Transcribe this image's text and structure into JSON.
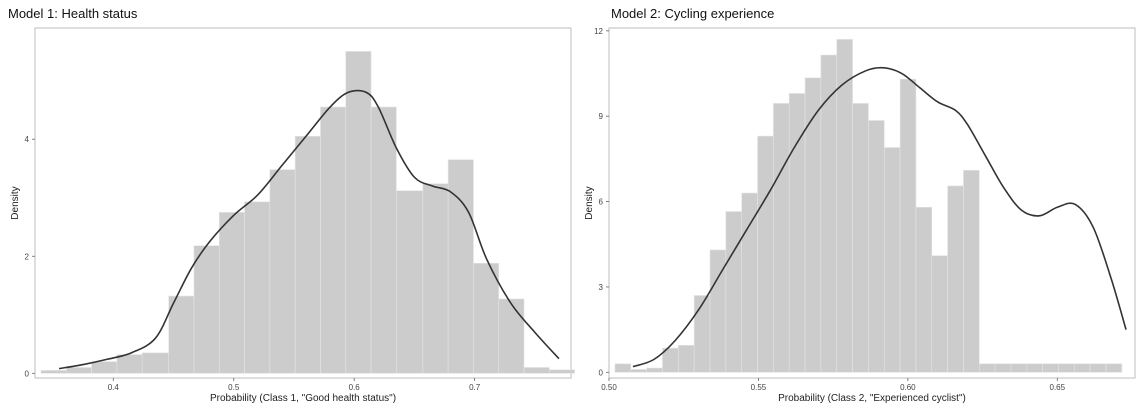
{
  "chart_data": [
    {
      "type": "bar",
      "title": "Model 1: Health status",
      "xlabel": "Probability (Class 1, \"Good health status\")",
      "ylabel": "Density",
      "xlim": [
        0.335,
        0.78
      ],
      "ylim": [
        -0.08,
        5.9
      ],
      "xticks": [
        "0.4",
        "0.5",
        "0.6",
        "0.7"
      ],
      "yticks": [
        "0",
        "2",
        "4"
      ],
      "grid": false,
      "histogram": {
        "bin_edges": [
          0.34,
          0.361,
          0.382,
          0.403,
          0.424,
          0.446,
          0.467,
          0.488,
          0.509,
          0.53,
          0.551,
          0.572,
          0.593,
          0.614,
          0.635,
          0.657,
          0.678,
          0.699,
          0.72,
          0.741,
          0.762,
          0.783
        ],
        "densities": [
          0.05,
          0.1,
          0.2,
          0.32,
          0.35,
          1.32,
          2.18,
          2.75,
          2.93,
          3.48,
          4.05,
          4.55,
          5.5,
          4.55,
          3.12,
          3.24,
          3.65,
          1.88,
          1.27,
          0.1,
          0.06
        ]
      },
      "density_curve": {
        "x": [
          0.355,
          0.375,
          0.395,
          0.415,
          0.435,
          0.45,
          0.465,
          0.48,
          0.5,
          0.52,
          0.54,
          0.56,
          0.58,
          0.595,
          0.61,
          0.62,
          0.635,
          0.65,
          0.665,
          0.68,
          0.695,
          0.71,
          0.73,
          0.75,
          0.77
        ],
        "y": [
          0.08,
          0.15,
          0.24,
          0.35,
          0.6,
          1.2,
          1.8,
          2.25,
          2.7,
          3.05,
          3.55,
          4.05,
          4.55,
          4.8,
          4.8,
          4.55,
          3.85,
          3.35,
          3.2,
          3.1,
          2.75,
          1.95,
          1.2,
          0.7,
          0.25
        ]
      }
    },
    {
      "type": "bar",
      "title": "Model 2: Cycling experience",
      "xlabel": "Probability (Class 2, \"Experienced cyclist\")",
      "ylabel": "Density",
      "xlim": [
        0.5,
        0.676
      ],
      "ylim": [
        -0.2,
        12.1
      ],
      "xticks": [
        "0.50",
        "0.55",
        "0.60",
        "0.65"
      ],
      "yticks": [
        "0",
        "3",
        "6",
        "9",
        "12"
      ],
      "grid": false,
      "histogram": {
        "bin_edges": [
          0.502,
          0.5073,
          0.5126,
          0.5179,
          0.5232,
          0.5285,
          0.5338,
          0.5391,
          0.5444,
          0.5497,
          0.555,
          0.5603,
          0.5656,
          0.5709,
          0.5762,
          0.5815,
          0.5868,
          0.5921,
          0.5974,
          0.6027,
          0.608,
          0.6133,
          0.6186,
          0.6239,
          0.6292,
          0.6345,
          0.6398,
          0.6451,
          0.6504,
          0.6557,
          0.661,
          0.6663,
          0.6716
        ],
        "densities": [
          0.3,
          0.1,
          0.15,
          0.85,
          0.95,
          2.7,
          4.3,
          5.65,
          6.3,
          8.3,
          9.45,
          9.8,
          10.35,
          11.15,
          11.7,
          9.45,
          8.85,
          7.9,
          10.3,
          5.8,
          4.1,
          6.55,
          7.1,
          0.3,
          0.3,
          0.3,
          0.3,
          0.3,
          0.3,
          0.3,
          0.3,
          0.3
        ]
      },
      "density_curve": {
        "x": [
          0.508,
          0.515,
          0.522,
          0.53,
          0.538,
          0.546,
          0.554,
          0.562,
          0.57,
          0.578,
          0.586,
          0.592,
          0.598,
          0.604,
          0.61,
          0.616,
          0.62,
          0.626,
          0.632,
          0.638,
          0.644,
          0.65,
          0.656,
          0.662,
          0.668,
          0.673
        ],
        "y": [
          0.2,
          0.45,
          1.1,
          2.2,
          3.6,
          5.0,
          6.4,
          7.9,
          9.2,
          10.1,
          10.6,
          10.7,
          10.5,
          10.0,
          9.5,
          9.2,
          8.7,
          7.6,
          6.5,
          5.7,
          5.5,
          5.8,
          5.9,
          5.1,
          3.3,
          1.5
        ]
      }
    }
  ]
}
